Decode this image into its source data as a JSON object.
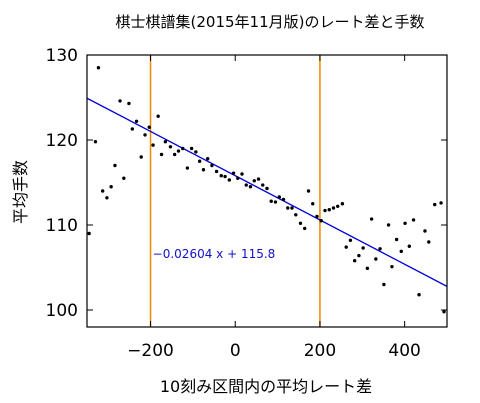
{
  "chart_data": {
    "type": "scatter",
    "title": "棋士棋譜集(2015年11月版)のレート差と手数",
    "xlabel": "10刻み区間内の平均レート差",
    "ylabel": "平均手数",
    "xlim": [
      -350,
      500
    ],
    "ylim": [
      98,
      130
    ],
    "xticks": [
      -200,
      0,
      200,
      400
    ],
    "xtick_labels": [
      "−200",
      "0",
      "200",
      "400"
    ],
    "yticks": [
      100,
      110,
      120,
      130
    ],
    "ytick_labels": [
      "100",
      "110",
      "120",
      "130"
    ],
    "grid": false,
    "legend": "none",
    "series": [
      {
        "points": [
          [
            -345,
            109.0
          ],
          [
            -330,
            119.8
          ],
          [
            -323,
            128.5
          ],
          [
            -313,
            114.0
          ],
          [
            -303,
            113.2
          ],
          [
            -293,
            114.5
          ],
          [
            -284,
            117.0
          ],
          [
            -272,
            124.6
          ],
          [
            -263,
            115.5
          ],
          [
            -251,
            124.3
          ],
          [
            -243,
            121.3
          ],
          [
            -233,
            122.2
          ],
          [
            -222,
            118.0
          ],
          [
            -213,
            120.6
          ],
          [
            -203,
            121.5
          ],
          [
            -194,
            119.4
          ],
          [
            -182,
            122.8
          ],
          [
            -174,
            118.3
          ],
          [
            -165,
            119.8
          ],
          [
            -153,
            119.2
          ],
          [
            -143,
            118.3
          ],
          [
            -134,
            118.7
          ],
          [
            -124,
            119.0
          ],
          [
            -113,
            116.7
          ],
          [
            -103,
            119.0
          ],
          [
            -93,
            118.6
          ],
          [
            -84,
            117.5
          ],
          [
            -75,
            116.5
          ],
          [
            -65,
            117.8
          ],
          [
            -55,
            117.0
          ],
          [
            -44,
            116.3
          ],
          [
            -33,
            115.8
          ],
          [
            -24,
            115.7
          ],
          [
            -14,
            115.3
          ],
          [
            -4,
            116.1
          ],
          [
            6,
            115.5
          ],
          [
            16,
            116.0
          ],
          [
            26,
            114.7
          ],
          [
            36,
            114.5
          ],
          [
            45,
            115.2
          ],
          [
            55,
            115.4
          ],
          [
            65,
            114.7
          ],
          [
            75,
            114.3
          ],
          [
            85,
            112.8
          ],
          [
            95,
            112.7
          ],
          [
            104,
            113.3
          ],
          [
            114,
            113.0
          ],
          [
            124,
            112.0
          ],
          [
            134,
            112.0
          ],
          [
            143,
            111.2
          ],
          [
            154,
            110.2
          ],
          [
            164,
            109.6
          ],
          [
            173,
            114.0
          ],
          [
            183,
            112.5
          ],
          [
            193,
            111.0
          ],
          [
            203,
            110.5
          ],
          [
            212,
            111.7
          ],
          [
            222,
            111.8
          ],
          [
            232,
            112.0
          ],
          [
            242,
            112.2
          ],
          [
            253,
            112.5
          ],
          [
            262,
            107.4
          ],
          [
            272,
            108.2
          ],
          [
            282,
            105.8
          ],
          [
            292,
            106.4
          ],
          [
            302,
            107.3
          ],
          [
            312,
            104.9
          ],
          [
            322,
            110.7
          ],
          [
            332,
            106.0
          ],
          [
            342,
            107.2
          ],
          [
            351,
            103.0
          ],
          [
            362,
            110.0
          ],
          [
            370,
            105.1
          ],
          [
            381,
            108.3
          ],
          [
            392,
            106.9
          ],
          [
            401,
            110.2
          ],
          [
            411,
            107.5
          ],
          [
            421,
            110.6
          ],
          [
            434,
            101.8
          ],
          [
            448,
            109.3
          ],
          [
            457,
            108.0
          ],
          [
            471,
            112.4
          ],
          [
            486,
            112.6
          ],
          [
            493,
            99.8
          ]
        ],
        "color": "#000000"
      }
    ],
    "fit_line": {
      "slope": -0.02604,
      "intercept": 115.8,
      "label": "−0.02604 x + 115.8",
      "color": "#0000dd"
    },
    "vertical_lines": [
      {
        "x": -200,
        "color": "#ee8800"
      },
      {
        "x": 200,
        "color": "#ee8800"
      }
    ]
  }
}
